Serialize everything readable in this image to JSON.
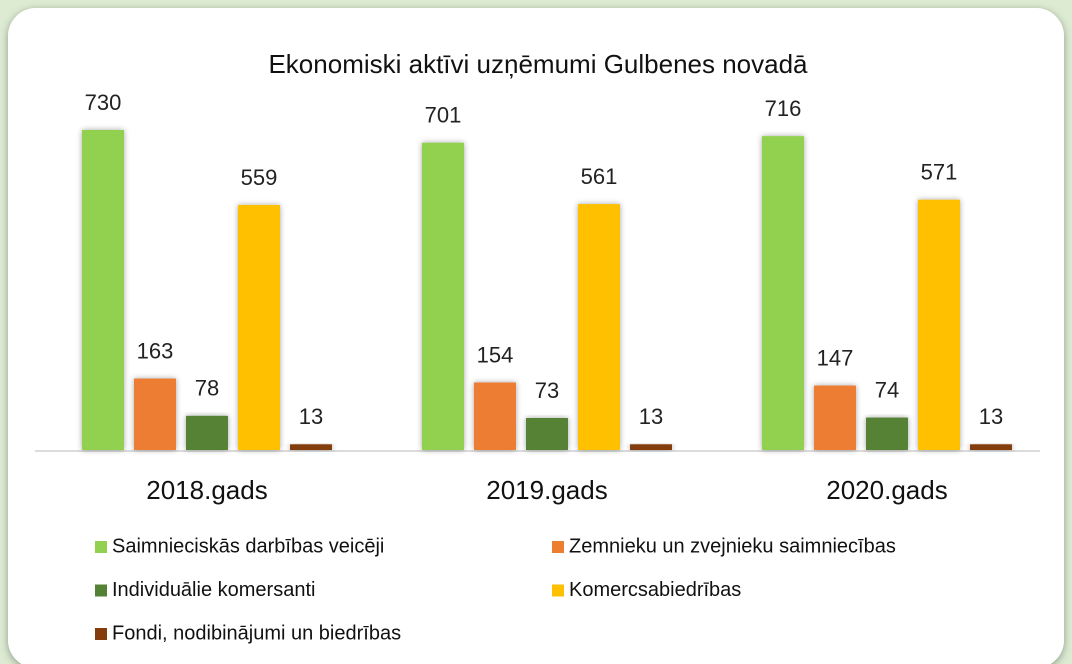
{
  "chart_data": {
    "type": "bar",
    "title": "Ekonomiski aktīvi uzņēmumi Gulbenes novadā",
    "categories": [
      "2018.gads",
      "2019.gads",
      "2020.gads"
    ],
    "series": [
      {
        "name": "Saimnieciskās darbības veicēji",
        "color": "#92d050",
        "values": [
          730,
          701,
          716
        ]
      },
      {
        "name": "Zemnieku un zvejnieku saimniecības",
        "color": "#ed7d31",
        "values": [
          163,
          154,
          147
        ]
      },
      {
        "name": "Individuālie komersanti",
        "color": "#548235",
        "values": [
          78,
          73,
          74
        ]
      },
      {
        "name": "Komercsabiedrības",
        "color": "#ffc000",
        "values": [
          559,
          561,
          571
        ]
      },
      {
        "name": "Fondi, nodibinājumi un biedrības",
        "color": "#843c0c",
        "values": [
          13,
          13,
          13
        ]
      }
    ]
  }
}
